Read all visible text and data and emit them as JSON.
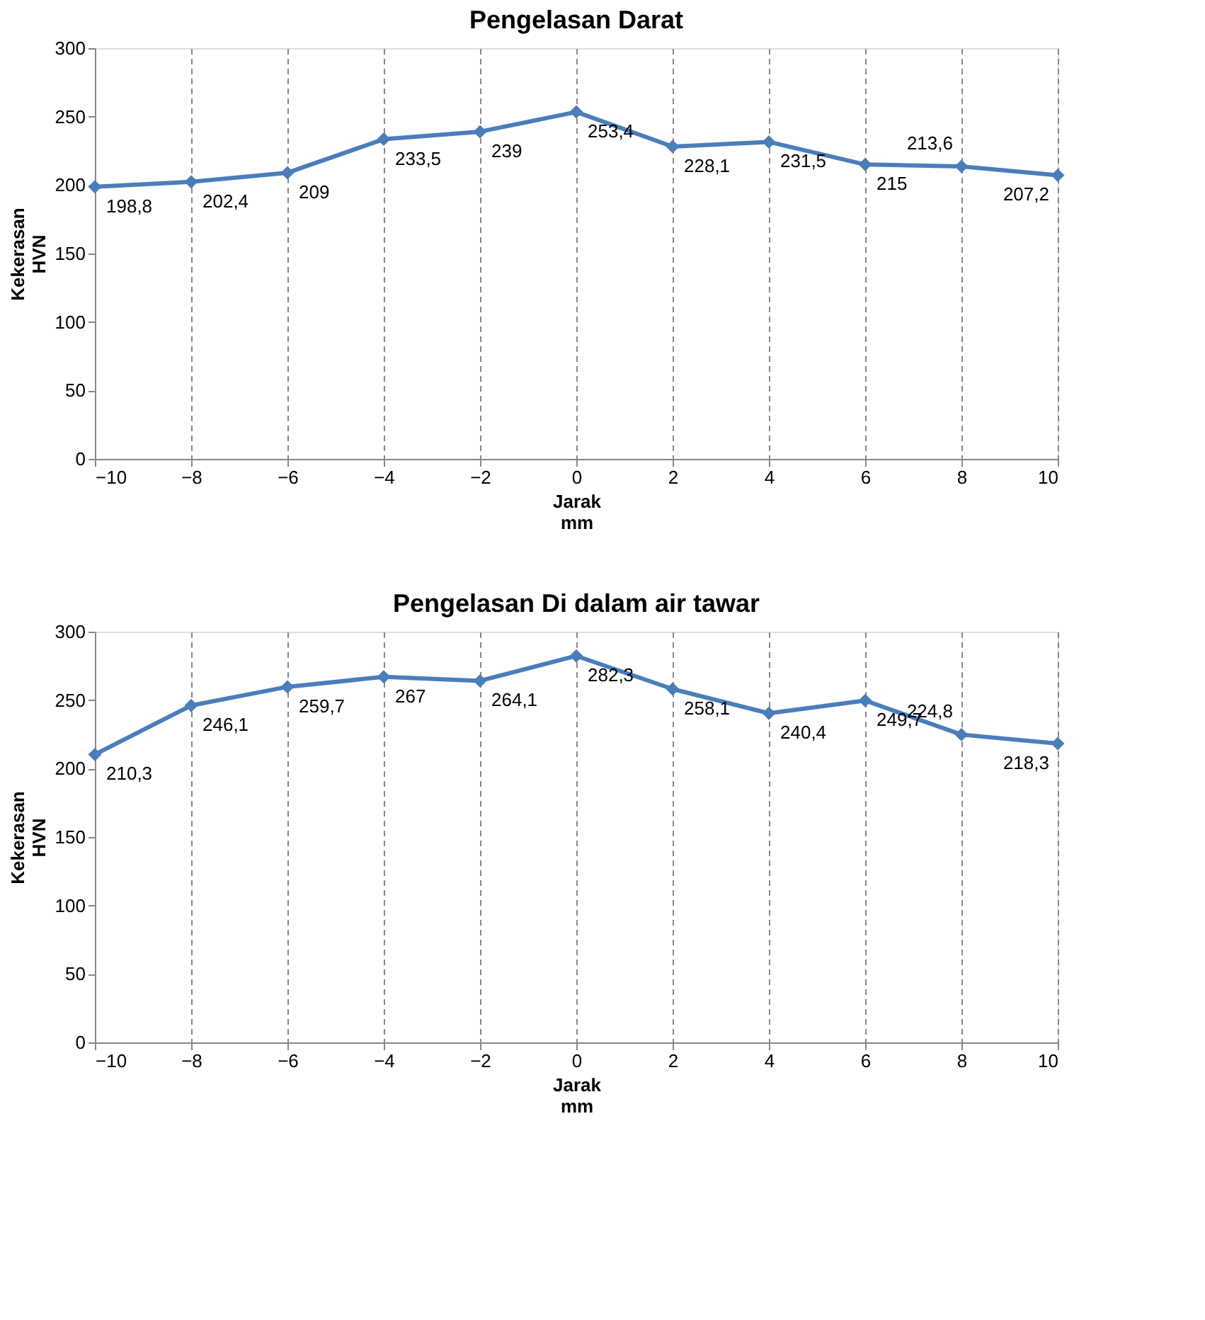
{
  "chart_data": [
    {
      "type": "line",
      "title": "Pengelasan Darat",
      "xlabel": "Jarak\nmm",
      "ylabel": "Kekerasan\nHVN",
      "x": [
        -10,
        -8,
        -6,
        -4,
        -2,
        0,
        2,
        4,
        6,
        8,
        10
      ],
      "series": [
        {
          "color": "#4a7ebb",
          "values": [
            198.8,
            202.4,
            209,
            233.5,
            239,
            253.4,
            228.1,
            231.5,
            215,
            213.6,
            207.2
          ]
        }
      ],
      "value_labels": [
        "198,8",
        "202,4",
        "209",
        "233,5",
        "239",
        "253,4",
        "228,1",
        "231,5",
        "215",
        "213,6",
        "207,2"
      ],
      "xlim": [
        -10,
        10
      ],
      "xticks": [
        -10,
        -8,
        -6,
        -4,
        -2,
        0,
        2,
        4,
        6,
        8,
        10
      ],
      "ylim": [
        0,
        300
      ],
      "yticks": [
        0,
        50,
        100,
        150,
        200,
        250,
        300
      ],
      "grid": "x",
      "marker": "diamond",
      "line_style": "solid"
    },
    {
      "type": "line",
      "title": "Pengelasan Di dalam air tawar",
      "xlabel": "Jarak\nmm",
      "ylabel": "Kekerasan\nHVN",
      "x": [
        -10,
        -8,
        -6,
        -4,
        -2,
        0,
        2,
        4,
        6,
        8,
        10
      ],
      "series": [
        {
          "color": "#4a7ebb",
          "values": [
            210.3,
            246.1,
            259.7,
            267,
            264.1,
            282.3,
            258.1,
            240.4,
            249.7,
            224.8,
            218.3
          ]
        }
      ],
      "value_labels": [
        "210,3",
        "246,1",
        "259,7",
        "267",
        "264,1",
        "282,3",
        "258,1",
        "240,4",
        "249,7",
        "224,8",
        "218,3"
      ],
      "xlim": [
        -10,
        10
      ],
      "xticks": [
        -10,
        -8,
        -6,
        -4,
        -2,
        0,
        2,
        4,
        6,
        8,
        10
      ],
      "ylim": [
        0,
        300
      ],
      "yticks": [
        0,
        50,
        100,
        150,
        200,
        250,
        300
      ],
      "grid": "x",
      "marker": "diamond",
      "line_style": "solid"
    }
  ]
}
